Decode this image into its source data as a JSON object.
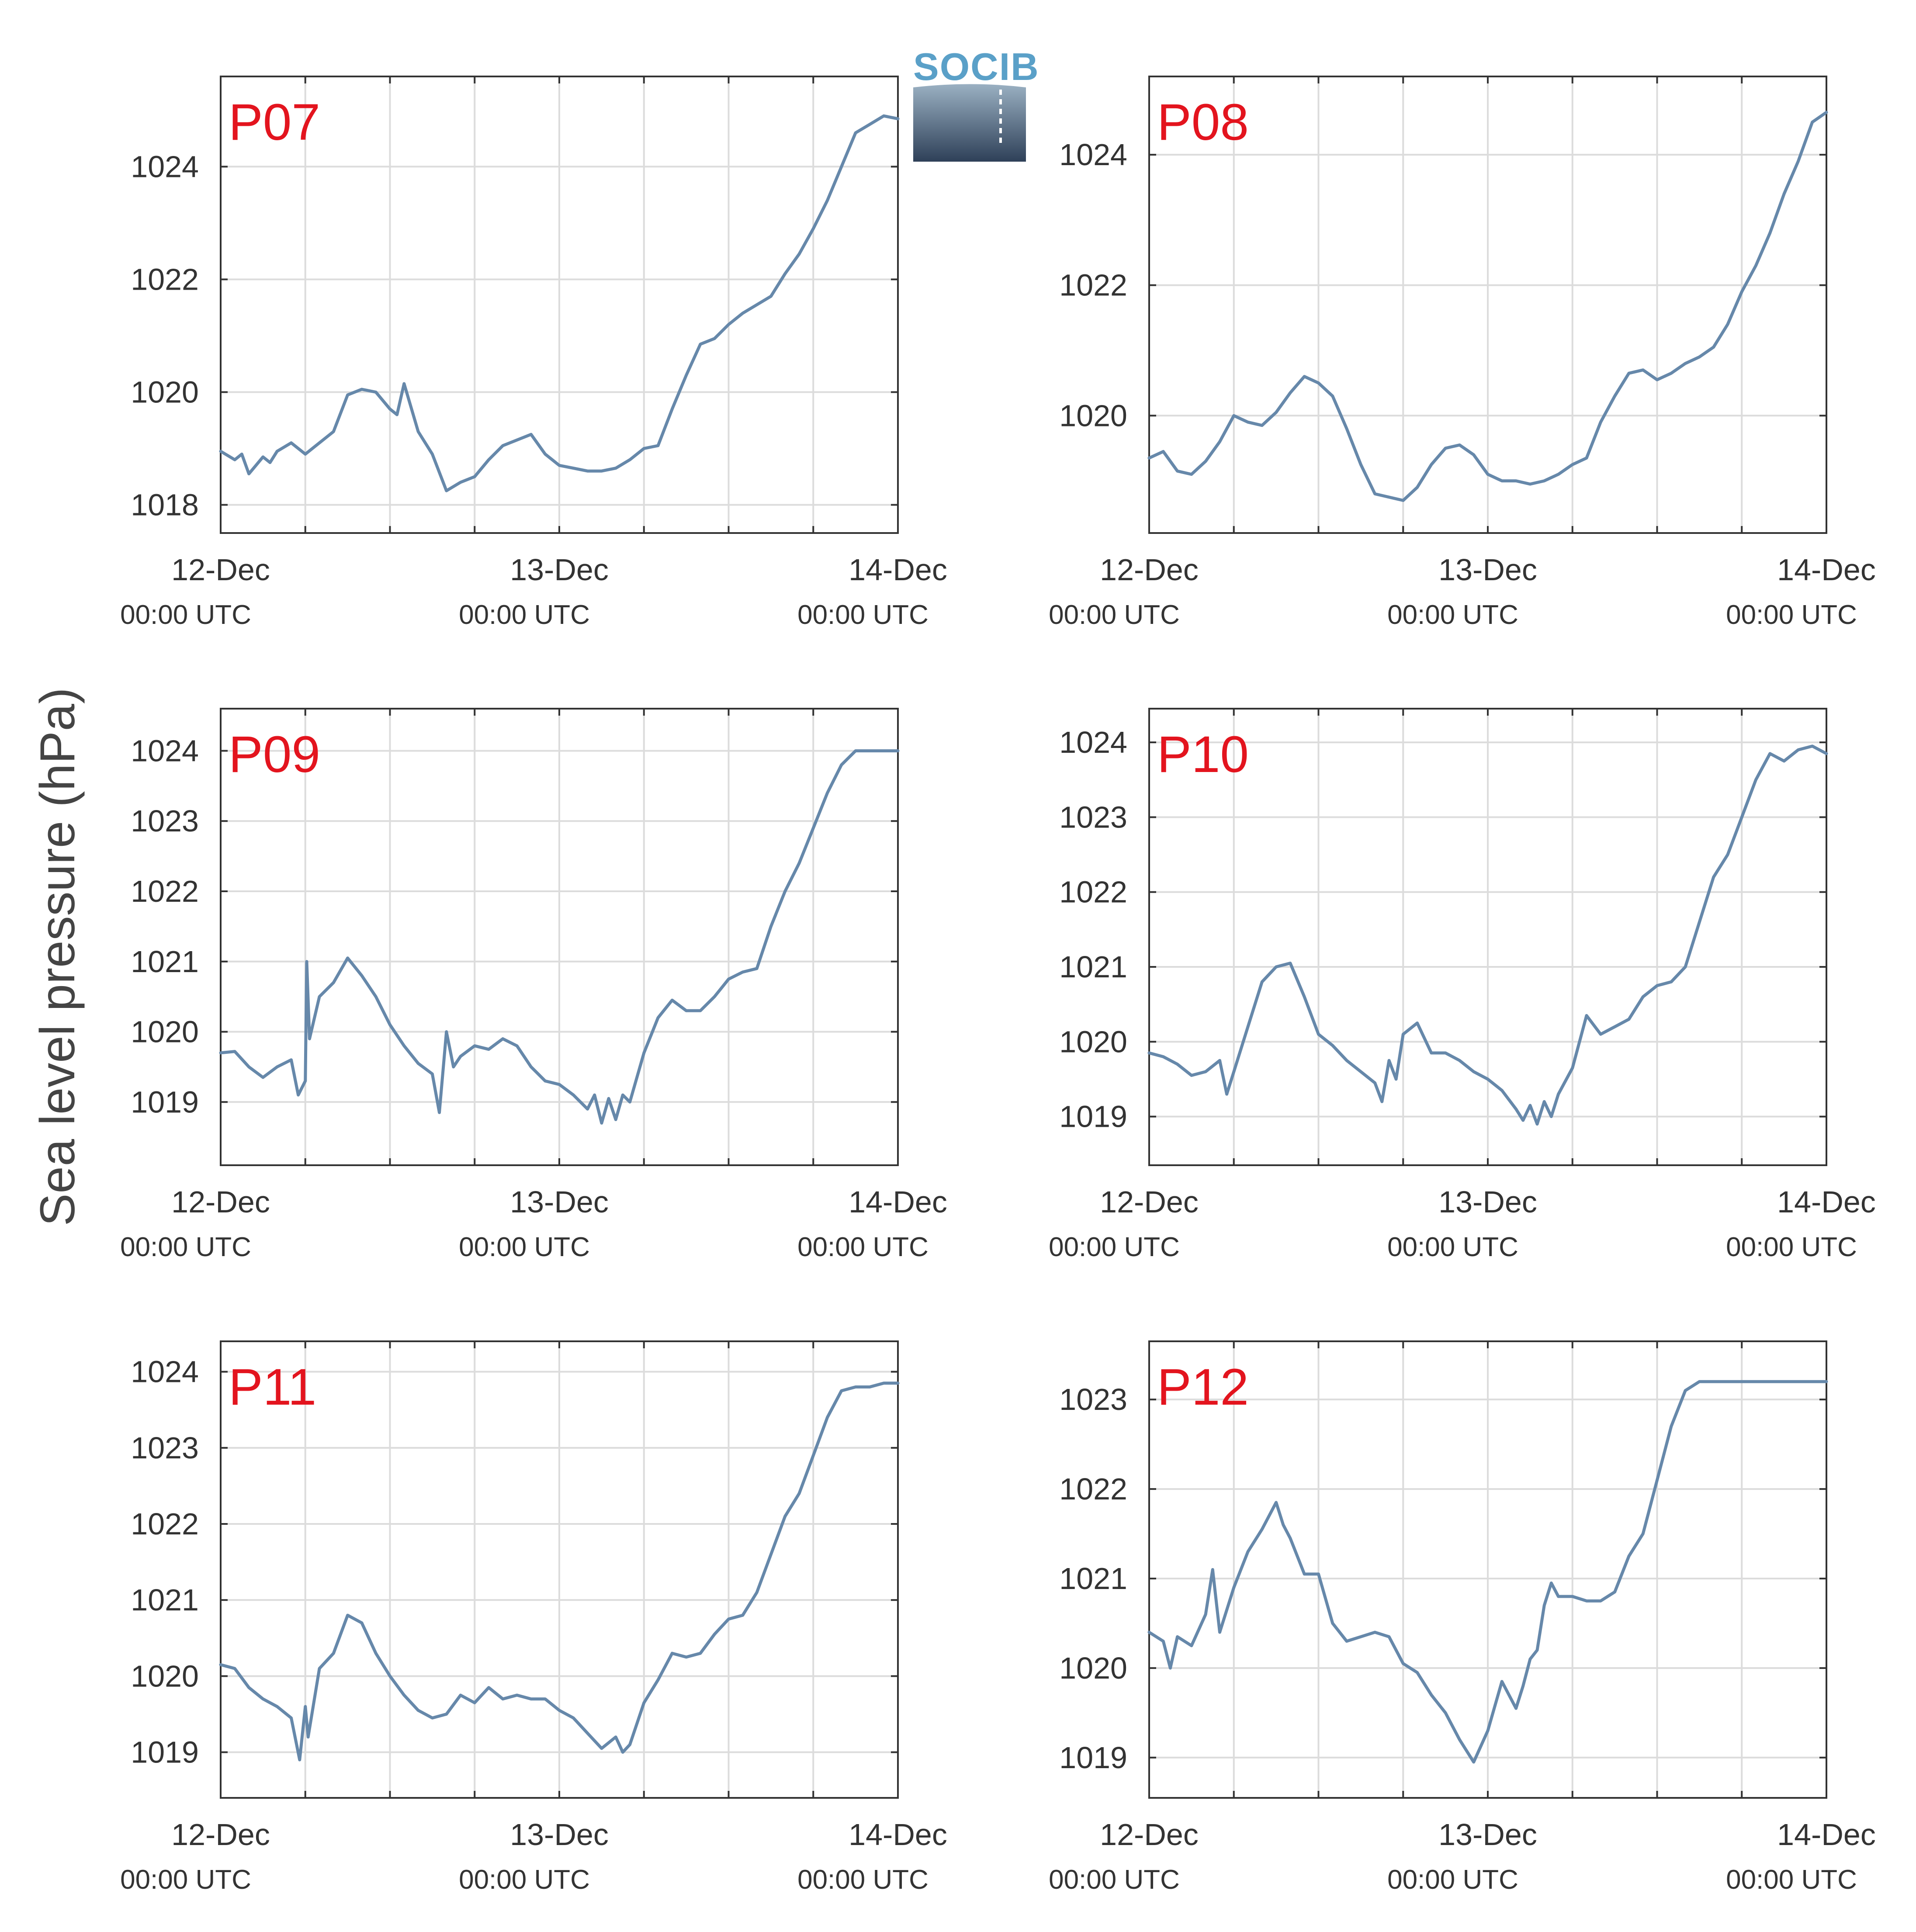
{
  "figure": {
    "ylabel": "Sea level pressure (hPa)",
    "logo_text": "SOCIB"
  },
  "colors": {
    "series": "#6688aa",
    "panel_label": "#e3141e",
    "grid": "#dcdcdc",
    "axis": "#333333"
  },
  "chart_data": [
    {
      "type": "line",
      "station": "P07",
      "x_tick_labels": [
        "12-Dec",
        "13-Dec",
        "14-Dec"
      ],
      "x_tick_sublabels": [
        "00:00 UTC",
        "00:00 UTC",
        "00:00 UTC"
      ],
      "xlim": [
        0,
        48
      ],
      "ylim": [
        1017.5,
        1025.6
      ],
      "y_ticks": [
        1018,
        1020,
        1022,
        1024
      ],
      "grid": true,
      "series": [
        {
          "x": [
            0,
            1,
            1.5,
            2,
            2.5,
            3,
            3.5,
            4,
            5,
            6,
            7,
            8,
            9,
            10,
            11,
            12,
            12.5,
            13,
            14,
            15,
            16,
            17,
            18,
            19,
            20,
            21,
            22,
            23,
            24,
            25,
            26,
            27,
            28,
            29,
            30,
            31,
            32,
            33,
            34,
            35,
            36,
            37,
            38,
            39,
            40,
            41,
            42,
            43,
            44,
            45,
            46,
            47,
            48
          ],
          "y": [
            1018.95,
            1018.8,
            1018.9,
            1018.55,
            1018.7,
            1018.85,
            1018.75,
            1018.95,
            1019.1,
            1018.9,
            1019.1,
            1019.3,
            1019.95,
            1020.05,
            1020.0,
            1019.7,
            1019.6,
            1020.15,
            1019.3,
            1018.9,
            1018.25,
            1018.4,
            1018.5,
            1018.8,
            1019.05,
            1019.15,
            1019.25,
            1018.9,
            1018.7,
            1018.65,
            1018.6,
            1018.6,
            1018.65,
            1018.8,
            1019.0,
            1019.05,
            1019.7,
            1020.3,
            1020.85,
            1020.95,
            1021.2,
            1021.4,
            1021.55,
            1021.7,
            1022.1,
            1022.45,
            1022.9,
            1023.4,
            1024.0,
            1024.6,
            1024.75,
            1024.9,
            1024.85
          ]
        }
      ]
    },
    {
      "type": "line",
      "station": "P08",
      "x_tick_labels": [
        "12-Dec",
        "13-Dec",
        "14-Dec"
      ],
      "x_tick_sublabels": [
        "00:00 UTC",
        "00:00 UTC",
        "00:00 UTC"
      ],
      "xlim": [
        0,
        48
      ],
      "ylim": [
        1018.2,
        1025.2
      ],
      "y_ticks": [
        1020,
        1022,
        1024
      ],
      "grid": true,
      "series": [
        {
          "x": [
            0,
            1,
            2,
            3,
            4,
            5,
            6,
            7,
            8,
            9,
            10,
            11,
            12,
            13,
            14,
            15,
            16,
            17,
            18,
            19,
            20,
            21,
            22,
            23,
            24,
            25,
            26,
            27,
            28,
            29,
            30,
            31,
            32,
            33,
            34,
            35,
            36,
            37,
            38,
            39,
            40,
            41,
            42,
            43,
            44,
            45,
            46,
            47,
            48
          ],
          "y": [
            1019.35,
            1019.45,
            1019.15,
            1019.1,
            1019.3,
            1019.6,
            1020.0,
            1019.9,
            1019.85,
            1020.05,
            1020.35,
            1020.6,
            1020.5,
            1020.3,
            1019.8,
            1019.25,
            1018.8,
            1018.75,
            1018.7,
            1018.9,
            1019.25,
            1019.5,
            1019.55,
            1019.4,
            1019.1,
            1019.0,
            1019.0,
            1018.95,
            1019.0,
            1019.1,
            1019.25,
            1019.35,
            1019.9,
            1020.3,
            1020.65,
            1020.7,
            1020.55,
            1020.65,
            1020.8,
            1020.9,
            1021.05,
            1021.4,
            1021.9,
            1022.3,
            1022.8,
            1023.4,
            1023.9,
            1024.5,
            1024.65
          ]
        }
      ]
    },
    {
      "type": "line",
      "station": "P09",
      "x_tick_labels": [
        "12-Dec",
        "13-Dec",
        "14-Dec"
      ],
      "x_tick_sublabels": [
        "00:00 UTC",
        "00:00 UTC",
        "00:00 UTC"
      ],
      "xlim": [
        0,
        48
      ],
      "ylim": [
        1018.1,
        1024.6
      ],
      "y_ticks": [
        1019,
        1020,
        1021,
        1022,
        1023,
        1024
      ],
      "grid": true,
      "series": [
        {
          "x": [
            0,
            1,
            2,
            3,
            4,
            5,
            5.5,
            6,
            6.1,
            6.3,
            7,
            8,
            9,
            10,
            11,
            12,
            13,
            14,
            15,
            15.5,
            16,
            16.5,
            17,
            18,
            19,
            20,
            21,
            22,
            23,
            24,
            25,
            26,
            26.5,
            27,
            27.5,
            28,
            28.5,
            29,
            30,
            31,
            32,
            33,
            34,
            35,
            36,
            37,
            38,
            39,
            40,
            41,
            42,
            43,
            44,
            45,
            46,
            47,
            48
          ],
          "y": [
            1019.7,
            1019.72,
            1019.5,
            1019.35,
            1019.5,
            1019.6,
            1019.1,
            1019.3,
            1021.0,
            1019.9,
            1020.5,
            1020.7,
            1021.05,
            1020.8,
            1020.5,
            1020.1,
            1019.8,
            1019.55,
            1019.4,
            1018.85,
            1020.0,
            1019.5,
            1019.65,
            1019.8,
            1019.75,
            1019.9,
            1019.8,
            1019.5,
            1019.3,
            1019.25,
            1019.1,
            1018.9,
            1019.1,
            1018.7,
            1019.05,
            1018.75,
            1019.1,
            1019.0,
            1019.7,
            1020.2,
            1020.45,
            1020.3,
            1020.3,
            1020.5,
            1020.75,
            1020.85,
            1020.9,
            1021.5,
            1022.0,
            1022.4,
            1022.9,
            1023.4,
            1023.8,
            1024.0,
            1024.0,
            1024.0,
            1024.0
          ]
        }
      ]
    },
    {
      "type": "line",
      "station": "P10",
      "x_tick_labels": [
        "12-Dec",
        "13-Dec",
        "14-Dec"
      ],
      "x_tick_sublabels": [
        "00:00 UTC",
        "00:00 UTC",
        "00:00 UTC"
      ],
      "xlim": [
        0,
        48
      ],
      "ylim": [
        1018.35,
        1024.45
      ],
      "y_ticks": [
        1019,
        1020,
        1021,
        1022,
        1023,
        1024
      ],
      "grid": true,
      "series": [
        {
          "x": [
            0,
            1,
            2,
            3,
            4,
            5,
            5.5,
            6,
            7,
            8,
            9,
            10,
            11,
            12,
            13,
            14,
            15,
            16,
            16.5,
            17,
            17.5,
            18,
            19,
            20,
            21,
            22,
            23,
            24,
            25,
            26,
            26.5,
            27,
            27.5,
            28,
            28.5,
            29,
            30,
            31,
            32,
            33,
            34,
            35,
            36,
            37,
            38,
            39,
            40,
            41,
            42,
            43,
            44,
            45,
            46,
            47,
            48
          ],
          "y": [
            1019.85,
            1019.8,
            1019.7,
            1019.55,
            1019.6,
            1019.75,
            1019.3,
            1019.6,
            1020.2,
            1020.8,
            1021.0,
            1021.05,
            1020.6,
            1020.1,
            1019.95,
            1019.75,
            1019.6,
            1019.45,
            1019.2,
            1019.75,
            1019.5,
            1020.1,
            1020.25,
            1019.85,
            1019.85,
            1019.75,
            1019.6,
            1019.5,
            1019.35,
            1019.1,
            1018.95,
            1019.15,
            1018.9,
            1019.2,
            1019.0,
            1019.3,
            1019.65,
            1020.35,
            1020.1,
            1020.2,
            1020.3,
            1020.6,
            1020.75,
            1020.8,
            1021.0,
            1021.6,
            1022.2,
            1022.5,
            1023.0,
            1023.5,
            1023.85,
            1023.75,
            1023.9,
            1023.95,
            1023.85
          ]
        }
      ]
    },
    {
      "type": "line",
      "station": "P11",
      "x_tick_labels": [
        "12-Dec",
        "13-Dec",
        "14-Dec"
      ],
      "x_tick_sublabels": [
        "00:00 UTC",
        "00:00 UTC",
        "00:00 UTC"
      ],
      "xlim": [
        0,
        48
      ],
      "ylim": [
        1018.4,
        1024.4
      ],
      "y_ticks": [
        1019,
        1020,
        1021,
        1022,
        1023,
        1024
      ],
      "grid": true,
      "series": [
        {
          "x": [
            0,
            1,
            2,
            3,
            4,
            5,
            5.6,
            6,
            6.2,
            7,
            8,
            9,
            10,
            11,
            12,
            13,
            14,
            15,
            16,
            17,
            18,
            19,
            20,
            21,
            22,
            23,
            24,
            25,
            26,
            27,
            28,
            28.5,
            29,
            30,
            31,
            32,
            33,
            34,
            35,
            36,
            37,
            38,
            39,
            40,
            41,
            42,
            43,
            44,
            45,
            46,
            47,
            48
          ],
          "y": [
            1020.15,
            1020.1,
            1019.85,
            1019.7,
            1019.6,
            1019.45,
            1018.9,
            1019.6,
            1019.2,
            1020.1,
            1020.3,
            1020.8,
            1020.7,
            1020.3,
            1020.0,
            1019.75,
            1019.55,
            1019.45,
            1019.5,
            1019.75,
            1019.65,
            1019.85,
            1019.7,
            1019.75,
            1019.7,
            1019.7,
            1019.55,
            1019.45,
            1019.25,
            1019.05,
            1019.2,
            1019.0,
            1019.1,
            1019.65,
            1019.95,
            1020.3,
            1020.25,
            1020.3,
            1020.55,
            1020.75,
            1020.8,
            1021.1,
            1021.6,
            1022.1,
            1022.4,
            1022.9,
            1023.4,
            1023.75,
            1023.8,
            1023.8,
            1023.85,
            1023.85
          ]
        }
      ]
    },
    {
      "type": "line",
      "station": "P12",
      "x_tick_labels": [
        "12-Dec",
        "13-Dec",
        "14-Dec"
      ],
      "x_tick_sublabels": [
        "00:00 UTC",
        "00:00 UTC",
        "00:00 UTC"
      ],
      "xlim": [
        0,
        48
      ],
      "ylim": [
        1018.55,
        1023.65
      ],
      "y_ticks": [
        1019,
        1020,
        1021,
        1022,
        1023
      ],
      "grid": true,
      "series": [
        {
          "x": [
            0,
            1,
            1.5,
            2,
            3,
            4,
            4.5,
            5,
            6,
            7,
            8,
            9,
            9.5,
            10,
            11,
            12,
            13,
            14,
            15,
            16,
            17,
            18,
            19,
            20,
            21,
            22,
            23,
            24,
            25,
            26,
            26.5,
            27,
            27.5,
            28,
            28.5,
            29,
            30,
            31,
            32,
            33,
            34,
            35,
            36,
            37,
            38,
            39,
            40,
            41,
            42,
            43,
            44,
            45,
            46,
            47,
            48
          ],
          "y": [
            1020.4,
            1020.3,
            1020.0,
            1020.35,
            1020.25,
            1020.6,
            1021.1,
            1020.4,
            1020.9,
            1021.3,
            1021.55,
            1021.85,
            1021.6,
            1021.45,
            1021.05,
            1021.05,
            1020.5,
            1020.3,
            1020.35,
            1020.4,
            1020.35,
            1020.05,
            1019.95,
            1019.7,
            1019.5,
            1019.2,
            1018.95,
            1019.3,
            1019.85,
            1019.55,
            1019.8,
            1020.1,
            1020.2,
            1020.7,
            1020.95,
            1020.8,
            1020.8,
            1020.75,
            1020.75,
            1020.85,
            1021.25,
            1021.5,
            1022.1,
            1022.7,
            1023.1,
            1023.2,
            1023.2,
            1023.2,
            1023.2,
            1023.2,
            1023.2,
            1023.2,
            1023.2,
            1023.2,
            1023.2
          ]
        }
      ]
    }
  ]
}
